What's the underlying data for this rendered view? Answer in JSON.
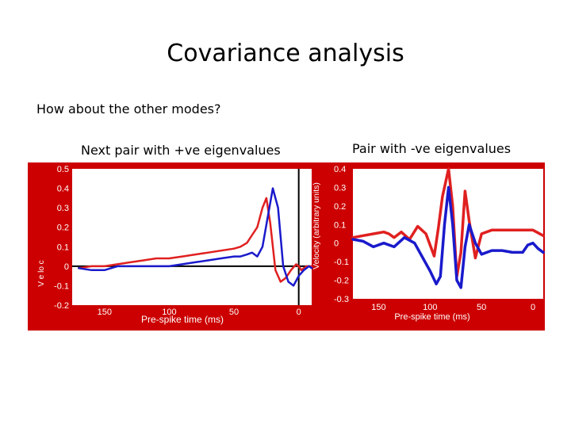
{
  "slide": {
    "title": "Covariance analysis",
    "subtitle": "How about the other modes?",
    "left_caption": "Next pair with +ve eigenvalues",
    "right_caption": "Pair with -ve eigenvalues"
  },
  "colors": {
    "panel_background": "#cc0000",
    "plot_background": "#ffffff",
    "series_red": "#e02020",
    "series_blue": "#1a1acc",
    "axis_text": "#ffffff"
  },
  "chart_data": [
    {
      "type": "line",
      "xlabel": "Pre-spike time (ms)",
      "ylabel": "V e lo c",
      "xlim": [
        175,
        -10
      ],
      "ylim": [
        -0.2,
        0.5
      ],
      "x_ticks": [
        "150",
        "100",
        "50",
        "0"
      ],
      "x_tick_values": [
        150,
        100,
        50,
        0
      ],
      "y_ticks": [
        "0.5",
        "0.4",
        "0.3",
        "0.2",
        "0.1",
        "0",
        "-0.1",
        "-0.2"
      ],
      "y_tick_values": [
        0.5,
        0.4,
        0.3,
        0.2,
        0.1,
        0,
        -0.1,
        -0.2
      ],
      "vertical_line_x": 0,
      "horizontal_line_y": 0,
      "series": [
        {
          "color": "red",
          "x": [
            170,
            160,
            150,
            140,
            130,
            120,
            110,
            100,
            90,
            80,
            70,
            60,
            50,
            45,
            40,
            36,
            32,
            28,
            25,
            22,
            18,
            14,
            10,
            6,
            2,
            0,
            -2,
            -6,
            -10
          ],
          "y": [
            -0.01,
            0.0,
            0.0,
            0.01,
            0.02,
            0.03,
            0.04,
            0.04,
            0.05,
            0.06,
            0.07,
            0.08,
            0.09,
            0.1,
            0.12,
            0.16,
            0.2,
            0.3,
            0.35,
            0.22,
            -0.02,
            -0.08,
            -0.06,
            -0.02,
            0.01,
            0.0,
            -0.02,
            0.0,
            0.0
          ]
        },
        {
          "color": "blue",
          "x": [
            170,
            160,
            150,
            140,
            130,
            120,
            110,
            100,
            90,
            80,
            70,
            60,
            50,
            45,
            40,
            36,
            32,
            28,
            24,
            20,
            16,
            12,
            8,
            4,
            0,
            -4,
            -8,
            -10
          ],
          "y": [
            -0.01,
            -0.02,
            -0.02,
            0.0,
            0.0,
            0.0,
            0.0,
            0.0,
            0.01,
            0.02,
            0.03,
            0.04,
            0.05,
            0.05,
            0.06,
            0.07,
            0.05,
            0.1,
            0.25,
            0.4,
            0.3,
            0.0,
            -0.08,
            -0.1,
            -0.05,
            -0.02,
            0.0,
            -0.01
          ]
        }
      ]
    },
    {
      "type": "line",
      "xlabel": "Pre-spike time (ms)",
      "ylabel": "Velocity (arbitrary units)",
      "xlim": [
        175,
        -10
      ],
      "ylim": [
        -0.3,
        0.4
      ],
      "x_ticks": [
        "150",
        "100",
        "50",
        "0"
      ],
      "x_tick_values": [
        150,
        100,
        50,
        0
      ],
      "y_ticks": [
        "0.4",
        "0.3",
        "0.2",
        "0.1",
        "0",
        "-0.1",
        "-0.2",
        "-0.3"
      ],
      "y_tick_values": [
        0.4,
        0.3,
        0.2,
        0.1,
        0,
        -0.1,
        -0.2,
        -0.3
      ],
      "series": [
        {
          "color": "red",
          "x": [
            175,
            165,
            155,
            145,
            140,
            135,
            128,
            120,
            112,
            104,
            96,
            92,
            88,
            82,
            78,
            74,
            70,
            66,
            62,
            56,
            50,
            40,
            30,
            20,
            10,
            0,
            -10
          ],
          "y": [
            0.03,
            0.04,
            0.05,
            0.06,
            0.05,
            0.03,
            0.06,
            0.02,
            0.09,
            0.05,
            -0.07,
            0.08,
            0.25,
            0.4,
            0.2,
            -0.18,
            -0.05,
            0.28,
            0.12,
            -0.08,
            0.05,
            0.07,
            0.07,
            0.07,
            0.07,
            0.07,
            0.04
          ]
        },
        {
          "color": "blue",
          "x": [
            175,
            165,
            155,
            145,
            135,
            125,
            115,
            108,
            100,
            94,
            90,
            86,
            82,
            78,
            74,
            70,
            66,
            62,
            56,
            50,
            40,
            30,
            20,
            10,
            5,
            0,
            -5,
            -10
          ],
          "y": [
            0.02,
            0.01,
            -0.02,
            0.0,
            -0.02,
            0.03,
            0.0,
            -0.07,
            -0.15,
            -0.22,
            -0.18,
            0.1,
            0.3,
            0.1,
            -0.2,
            -0.24,
            -0.02,
            0.1,
            0.0,
            -0.06,
            -0.04,
            -0.04,
            -0.05,
            -0.05,
            -0.01,
            0.0,
            -0.03,
            -0.05
          ]
        }
      ]
    }
  ]
}
